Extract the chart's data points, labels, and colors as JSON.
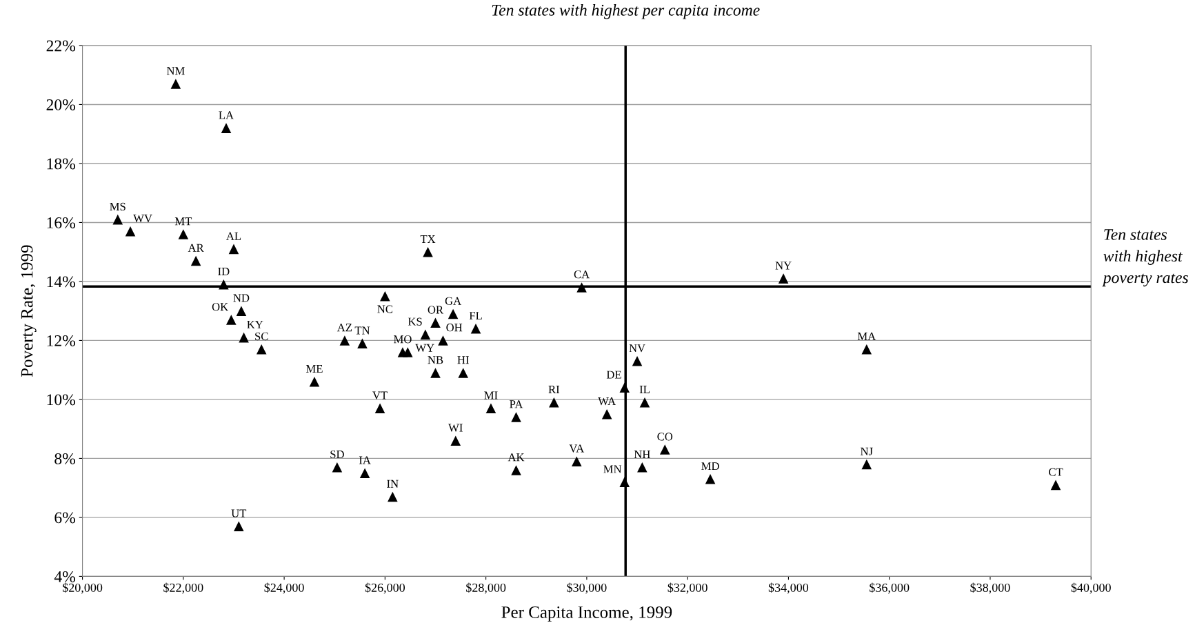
{
  "chart_data": {
    "type": "scatter",
    "xlabel": "Per Capita Income, 1999",
    "ylabel": "Poverty Rate, 1999",
    "x": [
      21850,
      22850,
      20700,
      20950,
      22000,
      23000,
      22250,
      26850,
      22800,
      26000,
      29900,
      33900,
      23150,
      22950,
      27350,
      27000,
      27800,
      26800,
      23200,
      25200,
      25550,
      27150,
      26350,
      26450,
      23550,
      35550,
      31000,
      27000,
      27550,
      24600,
      30750,
      31150,
      29350,
      28100,
      25900,
      30400,
      28600,
      27400,
      31550,
      29800,
      35550,
      25050,
      31100,
      28600,
      25600,
      32450,
      30750,
      39300,
      26150,
      23100
    ],
    "values": [
      20.7,
      19.2,
      16.1,
      15.7,
      15.6,
      15.1,
      14.7,
      15.0,
      13.9,
      13.5,
      13.8,
      14.1,
      13.0,
      12.7,
      12.9,
      12.6,
      12.4,
      12.2,
      12.1,
      12.0,
      11.9,
      12.0,
      11.6,
      11.6,
      11.7,
      11.7,
      11.3,
      10.9,
      10.9,
      10.6,
      10.4,
      9.9,
      9.9,
      9.7,
      9.7,
      9.5,
      9.4,
      8.6,
      8.3,
      7.9,
      7.8,
      7.7,
      7.7,
      7.6,
      7.5,
      7.3,
      7.2,
      7.1,
      6.7,
      5.7
    ],
    "annotations": [
      {
        "text": "NM",
        "x": 21850,
        "y": 20.7
      },
      {
        "text": "LA",
        "x": 22850,
        "y": 19.2
      },
      {
        "text": "MS",
        "x": 20700,
        "y": 16.1
      },
      {
        "text": "WV",
        "x": 20950,
        "y": 15.7
      },
      {
        "text": "MT",
        "x": 22000,
        "y": 15.6
      },
      {
        "text": "AL",
        "x": 23000,
        "y": 15.1
      },
      {
        "text": "AR",
        "x": 22250,
        "y": 14.7
      },
      {
        "text": "TX",
        "x": 26850,
        "y": 15.0
      },
      {
        "text": "ID",
        "x": 22800,
        "y": 13.9
      },
      {
        "text": "NC",
        "x": 26000,
        "y": 13.5
      },
      {
        "text": "CA",
        "x": 29900,
        "y": 13.8
      },
      {
        "text": "NY",
        "x": 33900,
        "y": 14.1
      },
      {
        "text": "ND",
        "x": 23150,
        "y": 13.0
      },
      {
        "text": "OK",
        "x": 22950,
        "y": 12.7
      },
      {
        "text": "GA",
        "x": 27350,
        "y": 12.9
      },
      {
        "text": "OR",
        "x": 27000,
        "y": 12.6
      },
      {
        "text": "FL",
        "x": 27800,
        "y": 12.4
      },
      {
        "text": "KS",
        "x": 26800,
        "y": 12.2
      },
      {
        "text": "KY",
        "x": 23200,
        "y": 12.1
      },
      {
        "text": "AZ",
        "x": 25200,
        "y": 12.0
      },
      {
        "text": "TN",
        "x": 25550,
        "y": 11.9
      },
      {
        "text": "OH",
        "x": 27150,
        "y": 12.0
      },
      {
        "text": "MO",
        "x": 26350,
        "y": 11.6
      },
      {
        "text": "WY",
        "x": 26450,
        "y": 11.6
      },
      {
        "text": "SC",
        "x": 23550,
        "y": 11.7
      },
      {
        "text": "MA",
        "x": 35550,
        "y": 11.7
      },
      {
        "text": "NV",
        "x": 31000,
        "y": 11.3
      },
      {
        "text": "NB",
        "x": 27000,
        "y": 10.9
      },
      {
        "text": "HI",
        "x": 27550,
        "y": 10.9
      },
      {
        "text": "ME",
        "x": 24600,
        "y": 10.6
      },
      {
        "text": "DE",
        "x": 30750,
        "y": 10.4
      },
      {
        "text": "IL",
        "x": 31150,
        "y": 9.9
      },
      {
        "text": "RI",
        "x": 29350,
        "y": 9.9
      },
      {
        "text": "MI",
        "x": 28100,
        "y": 9.7
      },
      {
        "text": "VT",
        "x": 25900,
        "y": 9.7
      },
      {
        "text": "WA",
        "x": 30400,
        "y": 9.5
      },
      {
        "text": "PA",
        "x": 28600,
        "y": 9.4
      },
      {
        "text": "WI",
        "x": 27400,
        "y": 8.6
      },
      {
        "text": "CO",
        "x": 31550,
        "y": 8.3
      },
      {
        "text": "VA",
        "x": 29800,
        "y": 7.9
      },
      {
        "text": "NJ",
        "x": 35550,
        "y": 7.8
      },
      {
        "text": "SD",
        "x": 25050,
        "y": 7.7
      },
      {
        "text": "NH",
        "x": 31100,
        "y": 7.7
      },
      {
        "text": "AK",
        "x": 28600,
        "y": 7.6
      },
      {
        "text": "IA",
        "x": 25600,
        "y": 7.5
      },
      {
        "text": "MD",
        "x": 32450,
        "y": 7.3
      },
      {
        "text": "MN",
        "x": 30750,
        "y": 7.2
      },
      {
        "text": "CT",
        "x": 39300,
        "y": 7.1
      },
      {
        "text": "IN",
        "x": 26150,
        "y": 6.7
      },
      {
        "text": "UT",
        "x": 23100,
        "y": 5.7
      }
    ],
    "ref_lines": [
      {
        "axis": "x",
        "value": 30770,
        "label": "Ten states with highest per capita income",
        "color": "#000000"
      },
      {
        "axis": "y",
        "value": 13.83,
        "label": "Ten states with highest poverty rates",
        "color": "#000000"
      }
    ],
    "color": "#000000",
    "marker": "triangle",
    "grid": "y",
    "xlim": [
      20000,
      40000
    ],
    "ylim": [
      4,
      22
    ],
    "xticks": [
      {
        "value": 20000,
        "label": "$20,000"
      },
      {
        "value": 22000,
        "label": "$22,000"
      },
      {
        "value": 24000,
        "label": "$24,000"
      },
      {
        "value": 26000,
        "label": "$26,000"
      },
      {
        "value": 28000,
        "label": "$28,000"
      },
      {
        "value": 30000,
        "label": "$30,000"
      },
      {
        "value": 32000,
        "label": "$32,000"
      },
      {
        "value": 34000,
        "label": "$34,000"
      },
      {
        "value": 36000,
        "label": "$36,000"
      },
      {
        "value": 38000,
        "label": "$38,000"
      },
      {
        "value": 40000,
        "label": "$40,000"
      }
    ],
    "yticks": [
      {
        "value": 4,
        "label": "4%"
      },
      {
        "value": 6,
        "label": "6%"
      },
      {
        "value": 8,
        "label": "8%"
      },
      {
        "value": 10,
        "label": "10%"
      },
      {
        "value": 12,
        "label": "12%"
      },
      {
        "value": 14,
        "label": "14%"
      },
      {
        "value": 16,
        "label": "16%"
      },
      {
        "value": 18,
        "label": "18%"
      },
      {
        "value": 20,
        "label": "20%"
      },
      {
        "value": 22,
        "label": "22%"
      }
    ]
  }
}
